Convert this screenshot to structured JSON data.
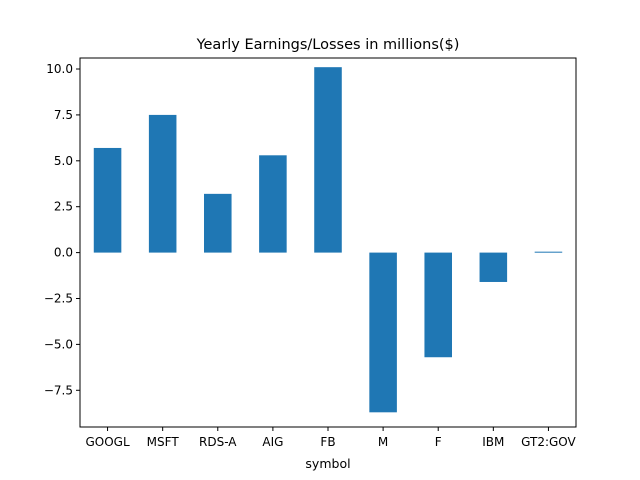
{
  "chart_data": {
    "type": "bar",
    "title": "Yearly Earnings/Losses in millions($)",
    "xlabel": "symbol",
    "ylabel": "",
    "categories": [
      "GOOGL",
      "MSFT",
      "RDS-A",
      "AIG",
      "FB",
      "M",
      "F",
      "IBM",
      "GT2:GOV"
    ],
    "values": [
      5.7,
      7.5,
      3.2,
      5.3,
      10.1,
      -8.7,
      -5.7,
      -1.6,
      0.05
    ],
    "ylim": [
      -9.5,
      10.6
    ],
    "yticks": [
      -7.5,
      -5.0,
      -2.5,
      0.0,
      2.5,
      5.0,
      7.5,
      10.0
    ],
    "ytick_labels": [
      "−7.5",
      "−5.0",
      "−2.5",
      "0.0",
      "2.5",
      "5.0",
      "7.5",
      "10.0"
    ],
    "grid": false,
    "legend": "none",
    "bar_color": "#1f77b4"
  }
}
